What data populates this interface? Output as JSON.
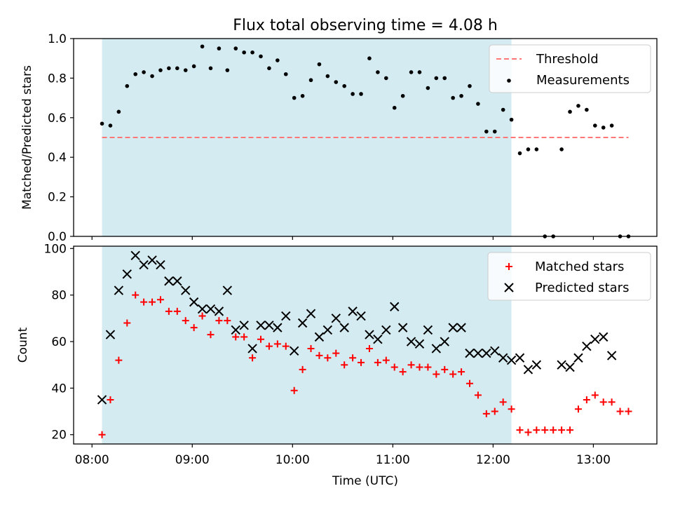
{
  "figure": {
    "title": "Flux total observing time = 4.08 h",
    "xlabel": "Time (UTC)",
    "x_ticks": [
      "08:00",
      "09:00",
      "10:00",
      "11:00",
      "12:00",
      "13:00"
    ]
  },
  "colors": {
    "shade": "#add8e6",
    "threshold": "#ff7777",
    "matched": "#ff0000",
    "predicted": "#000000",
    "measurement": "#000000"
  },
  "chart_data": [
    {
      "type": "scatter",
      "panel": "top",
      "ylabel": "Matched/Predicted stars",
      "xlim": [
        "07:49",
        "13:38"
      ],
      "ylim": [
        0,
        1.0
      ],
      "y_ticks": [
        "0.0",
        "0.2",
        "0.4",
        "0.6",
        "0.8",
        "1.0"
      ],
      "shaded_interval": [
        "08:06",
        "12:11"
      ],
      "threshold": {
        "name": "Threshold",
        "value": 0.5,
        "x_range": [
          "08:06",
          "13:21"
        ]
      },
      "legend_position": "top-right",
      "series": [
        {
          "name": "Measurements",
          "marker": "dot",
          "x": [
            "08:06",
            "08:11",
            "08:16",
            "08:21",
            "08:26",
            "08:31",
            "08:36",
            "08:41",
            "08:46",
            "08:51",
            "08:56",
            "09:01",
            "09:06",
            "09:11",
            "09:16",
            "09:21",
            "09:26",
            "09:31",
            "09:36",
            "09:41",
            "09:46",
            "09:51",
            "09:56",
            "10:01",
            "10:06",
            "10:11",
            "10:16",
            "10:21",
            "10:26",
            "10:31",
            "10:36",
            "10:41",
            "10:46",
            "10:51",
            "10:56",
            "11:01",
            "11:06",
            "11:11",
            "11:16",
            "11:21",
            "11:26",
            "11:31",
            "11:36",
            "11:41",
            "11:46",
            "11:51",
            "11:56",
            "12:01",
            "12:06",
            "12:11",
            "12:16",
            "12:21",
            "12:26",
            "12:31",
            "12:36",
            "12:41",
            "12:46",
            "12:51",
            "12:56",
            "13:01",
            "13:06",
            "13:11",
            "13:16",
            "13:21"
          ],
          "y": [
            0.57,
            0.56,
            0.63,
            0.76,
            0.82,
            0.83,
            0.81,
            0.84,
            0.85,
            0.85,
            0.84,
            0.86,
            0.96,
            0.85,
            0.95,
            0.84,
            0.95,
            0.93,
            0.93,
            0.91,
            0.85,
            0.89,
            0.82,
            0.7,
            0.71,
            0.79,
            0.87,
            0.81,
            0.78,
            0.76,
            0.72,
            0.72,
            0.9,
            0.83,
            0.8,
            0.65,
            0.71,
            0.83,
            0.83,
            0.75,
            0.8,
            0.8,
            0.7,
            0.71,
            0.76,
            0.67,
            0.53,
            0.53,
            0.64,
            0.59,
            0.42,
            0.44,
            0.44,
            0.0,
            0.0,
            0.44,
            0.63,
            0.66,
            0.64,
            0.56,
            0.55,
            0.56,
            0.0,
            0.0
          ]
        }
      ]
    },
    {
      "type": "scatter",
      "panel": "bottom",
      "ylabel": "Count",
      "xlim": [
        "07:49",
        "13:38"
      ],
      "ylim": [
        16,
        101
      ],
      "y_ticks": [
        "20",
        "40",
        "60",
        "80",
        "100"
      ],
      "shaded_interval": [
        "08:06",
        "12:11"
      ],
      "legend_position": "top-right",
      "series": [
        {
          "name": "Matched stars",
          "marker": "plus",
          "x": [
            "08:06",
            "08:11",
            "08:16",
            "08:21",
            "08:26",
            "08:31",
            "08:36",
            "08:41",
            "08:46",
            "08:51",
            "08:56",
            "09:01",
            "09:06",
            "09:11",
            "09:16",
            "09:21",
            "09:26",
            "09:31",
            "09:36",
            "09:41",
            "09:46",
            "09:51",
            "09:56",
            "10:01",
            "10:06",
            "10:11",
            "10:16",
            "10:21",
            "10:26",
            "10:31",
            "10:36",
            "10:41",
            "10:46",
            "10:51",
            "10:56",
            "11:01",
            "11:06",
            "11:11",
            "11:16",
            "11:21",
            "11:26",
            "11:31",
            "11:36",
            "11:41",
            "11:46",
            "11:51",
            "11:56",
            "12:01",
            "12:06",
            "12:11",
            "12:16",
            "12:21",
            "12:26",
            "12:31",
            "12:36",
            "12:41",
            "12:46",
            "12:51",
            "12:56",
            "13:01",
            "13:06",
            "13:11",
            "13:16",
            "13:21"
          ],
          "y": [
            20,
            35,
            52,
            68,
            80,
            77,
            77,
            78,
            73,
            73,
            69,
            66,
            71,
            63,
            69,
            69,
            62,
            62,
            53,
            61,
            58,
            59,
            58,
            39,
            48,
            57,
            54,
            53,
            55,
            50,
            53,
            51,
            57,
            51,
            52,
            49,
            47,
            50,
            49,
            49,
            46,
            48,
            46,
            47,
            42,
            37,
            29,
            30,
            34,
            31,
            22,
            21,
            22,
            22,
            22,
            22,
            22,
            31,
            35,
            37,
            34,
            34,
            30,
            30
          ]
        },
        {
          "name": "Predicted stars",
          "marker": "x",
          "x": [
            "08:06",
            "08:11",
            "08:16",
            "08:21",
            "08:26",
            "08:31",
            "08:36",
            "08:41",
            "08:46",
            "08:51",
            "08:56",
            "09:01",
            "09:06",
            "09:11",
            "09:16",
            "09:21",
            "09:26",
            "09:31",
            "09:36",
            "09:41",
            "09:46",
            "09:51",
            "09:56",
            "10:01",
            "10:06",
            "10:11",
            "10:16",
            "10:21",
            "10:26",
            "10:31",
            "10:36",
            "10:41",
            "10:46",
            "10:51",
            "10:56",
            "11:01",
            "11:06",
            "11:11",
            "11:16",
            "11:21",
            "11:26",
            "11:31",
            "11:36",
            "11:41",
            "11:46",
            "11:51",
            "11:56",
            "12:01",
            "12:06",
            "12:11",
            "12:16",
            "12:21",
            "12:26",
            "12:41",
            "12:46",
            "12:51",
            "12:56",
            "13:01",
            "13:06",
            "13:11"
          ],
          "y": [
            35,
            63,
            82,
            89,
            97,
            93,
            95,
            93,
            86,
            86,
            82,
            77,
            74,
            74,
            73,
            82,
            65,
            67,
            57,
            67,
            67,
            66,
            71,
            56,
            68,
            72,
            62,
            65,
            70,
            66,
            73,
            71,
            63,
            61,
            65,
            75,
            66,
            60,
            59,
            65,
            57,
            60,
            66,
            66,
            55,
            55,
            55,
            56,
            53,
            52,
            53,
            48,
            50,
            50,
            49,
            53,
            58,
            61,
            62,
            54
          ]
        }
      ]
    }
  ]
}
